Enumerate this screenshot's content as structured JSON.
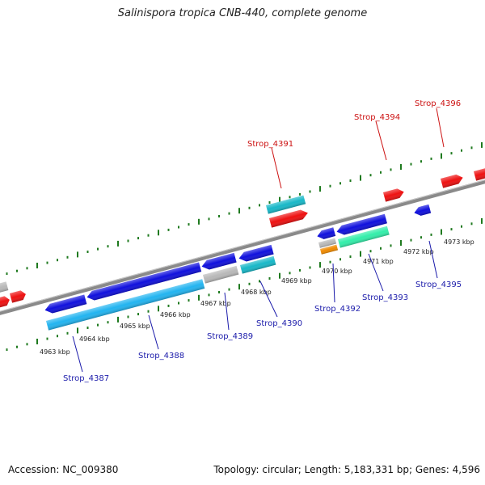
{
  "title": "Salinispora tropica CNB-440, complete genome",
  "footer": {
    "accession": "Accession: NC_009380",
    "summary": "Topology: circular; Length: 5,183,331 bp; Genes: 4,596"
  },
  "colors": {
    "backbone": "#8a8a8a",
    "ticks": "#1f7a1f",
    "gene_blue": "#1010dd",
    "gene_cyan": "#18b8c8",
    "gene_lightblue": "#22b4f0",
    "gene_red": "#ee1111",
    "gene_gray": "#b8b8b8",
    "gene_green": "#33eeaa",
    "gene_orange": "#f08a00",
    "label_red": "#cc1111",
    "label_blue": "#1a1aaa"
  },
  "kbp_labels": [
    "4963 kbp",
    "4964 kbp",
    "4965 kbp",
    "4966 kbp",
    "4967 kbp",
    "4968 kbp",
    "4969 kbp",
    "4970 kbp",
    "4971 kbp",
    "4972 kbp",
    "4973 kbp"
  ],
  "gene_labels_top": [
    "Strop_4391",
    "Strop_4394",
    "Strop_4396"
  ],
  "gene_labels_bottom": [
    "Strop_4387",
    "Strop_4388",
    "Strop_4389",
    "Strop_4390",
    "Strop_4392",
    "Strop_4393",
    "Strop_4395"
  ]
}
